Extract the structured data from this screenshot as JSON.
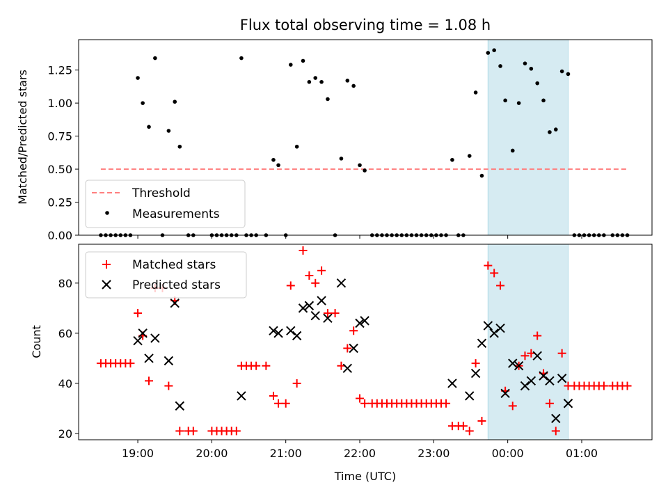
{
  "title": "Flux total observing time = 1.08 h",
  "chart_data": [
    {
      "type": "scatter",
      "ylabel": "Matched/Predicted stars",
      "xlim": [
        18.2,
        1.95
      ],
      "ylim": [
        0,
        1.48
      ],
      "yticks": [
        0.0,
        0.25,
        0.5,
        0.75,
        1.0,
        1.25
      ],
      "ytick_labels": [
        "0.00",
        "0.25",
        "0.50",
        "0.75",
        "1.00",
        "1.25"
      ],
      "shaded_span": {
        "from": "23:44",
        "to": "00:49",
        "color": "#add8e6"
      },
      "threshold": {
        "name": "Threshold",
        "y": 0.5,
        "x_from": "18:30",
        "x_to": "01:37",
        "color": "#ff7f7f"
      },
      "legend": {
        "placement": "lower-left",
        "entries": [
          "Threshold",
          "Measurements"
        ]
      },
      "series": [
        {
          "name": "Measurements",
          "color": "#000000",
          "points": [
            [
              "18:30",
              0
            ],
            [
              "18:34",
              0
            ],
            [
              "18:38",
              0
            ],
            [
              "18:42",
              0
            ],
            [
              "18:46",
              0
            ],
            [
              "18:50",
              0
            ],
            [
              "18:54",
              0
            ],
            [
              "19:00",
              1.19
            ],
            [
              "19:04",
              1.0
            ],
            [
              "19:09",
              0.82
            ],
            [
              "19:14",
              1.34
            ],
            [
              "19:20",
              0
            ],
            [
              "19:25",
              0.79
            ],
            [
              "19:30",
              1.01
            ],
            [
              "19:34",
              0.67
            ],
            [
              "19:41",
              0
            ],
            [
              "19:45",
              0
            ],
            [
              "20:00",
              0
            ],
            [
              "20:04",
              0
            ],
            [
              "20:08",
              0
            ],
            [
              "20:12",
              0
            ],
            [
              "20:16",
              0
            ],
            [
              "20:20",
              0
            ],
            [
              "20:24",
              1.34
            ],
            [
              "20:28",
              0
            ],
            [
              "20:32",
              0
            ],
            [
              "20:36",
              0
            ],
            [
              "20:44",
              0
            ],
            [
              "20:50",
              0.57
            ],
            [
              "20:54",
              0.53
            ],
            [
              "21:00",
              0
            ],
            [
              "21:04",
              1.29
            ],
            [
              "21:09",
              0.67
            ],
            [
              "21:14",
              1.32
            ],
            [
              "21:19",
              1.16
            ],
            [
              "21:24",
              1.19
            ],
            [
              "21:29",
              1.16
            ],
            [
              "21:34",
              1.03
            ],
            [
              "21:40",
              0
            ],
            [
              "21:45",
              0.58
            ],
            [
              "21:50",
              1.17
            ],
            [
              "21:55",
              1.13
            ],
            [
              "22:00",
              0.53
            ],
            [
              "22:04",
              0.49
            ],
            [
              "22:10",
              0
            ],
            [
              "22:14",
              0
            ],
            [
              "22:18",
              0
            ],
            [
              "22:22",
              0
            ],
            [
              "22:26",
              0
            ],
            [
              "22:30",
              0
            ],
            [
              "22:34",
              0
            ],
            [
              "22:38",
              0
            ],
            [
              "22:42",
              0
            ],
            [
              "22:46",
              0
            ],
            [
              "22:50",
              0
            ],
            [
              "22:54",
              0
            ],
            [
              "22:58",
              0
            ],
            [
              "23:02",
              0
            ],
            [
              "23:06",
              0
            ],
            [
              "23:10",
              0
            ],
            [
              "23:15",
              0.57
            ],
            [
              "23:20",
              0
            ],
            [
              "23:24",
              0
            ],
            [
              "23:29",
              0.6
            ],
            [
              "23:34",
              1.08
            ],
            [
              "23:39",
              0.45
            ],
            [
              "23:44",
              1.38
            ],
            [
              "23:49",
              1.4
            ],
            [
              "23:54",
              1.28
            ],
            [
              "23:58",
              1.02
            ],
            [
              "00:04",
              0.64
            ],
            [
              "00:09",
              1.0
            ],
            [
              "00:14",
              1.3
            ],
            [
              "00:19",
              1.26
            ],
            [
              "00:24",
              1.15
            ],
            [
              "00:29",
              1.02
            ],
            [
              "00:34",
              0.78
            ],
            [
              "00:39",
              0.8
            ],
            [
              "00:44",
              1.24
            ],
            [
              "00:49",
              1.22
            ],
            [
              "00:54",
              0
            ],
            [
              "00:58",
              0
            ],
            [
              "01:02",
              0
            ],
            [
              "01:06",
              0
            ],
            [
              "01:10",
              0
            ],
            [
              "01:14",
              0
            ],
            [
              "01:18",
              0
            ],
            [
              "01:25",
              0
            ],
            [
              "01:29",
              0
            ],
            [
              "01:33",
              0
            ],
            [
              "01:37",
              0
            ]
          ]
        }
      ]
    },
    {
      "type": "scatter",
      "ylabel": "Count",
      "xlabel": "Time (UTC)",
      "xlim": [
        18.2,
        1.95
      ],
      "ylim": [
        17.5,
        95.5
      ],
      "yticks": [
        20,
        40,
        60,
        80
      ],
      "ytick_labels": [
        "20",
        "40",
        "60",
        "80"
      ],
      "xticks": [
        "19:00",
        "20:00",
        "21:00",
        "22:00",
        "23:00",
        "00:00",
        "01:00"
      ],
      "shaded_span": {
        "from": "23:44",
        "to": "00:49",
        "color": "#add8e6"
      },
      "legend": {
        "placement": "upper-left",
        "entries": [
          "Matched stars",
          "Predicted stars"
        ]
      },
      "series": [
        {
          "name": "Matched stars",
          "marker": "+",
          "color": "#ff0000",
          "points": [
            [
              "18:30",
              48
            ],
            [
              "18:34",
              48
            ],
            [
              "18:38",
              48
            ],
            [
              "18:42",
              48
            ],
            [
              "18:46",
              48
            ],
            [
              "18:50",
              48
            ],
            [
              "18:54",
              48
            ],
            [
              "19:00",
              68
            ],
            [
              "19:04",
              59
            ],
            [
              "19:09",
              41
            ],
            [
              "19:14",
              78
            ],
            [
              "19:20",
              78
            ],
            [
              "19:25",
              39
            ],
            [
              "19:30",
              73
            ],
            [
              "19:34",
              21
            ],
            [
              "19:41",
              21
            ],
            [
              "19:45",
              21
            ],
            [
              "20:00",
              21
            ],
            [
              "20:04",
              21
            ],
            [
              "20:08",
              21
            ],
            [
              "20:12",
              21
            ],
            [
              "20:16",
              21
            ],
            [
              "20:20",
              21
            ],
            [
              "20:24",
              47
            ],
            [
              "20:28",
              47
            ],
            [
              "20:32",
              47
            ],
            [
              "20:36",
              47
            ],
            [
              "20:44",
              47
            ],
            [
              "20:50",
              35
            ],
            [
              "20:54",
              32
            ],
            [
              "21:00",
              32
            ],
            [
              "21:04",
              79
            ],
            [
              "21:09",
              40
            ],
            [
              "21:14",
              93
            ],
            [
              "21:19",
              83
            ],
            [
              "21:24",
              80
            ],
            [
              "21:29",
              85
            ],
            [
              "21:34",
              68
            ],
            [
              "21:40",
              68
            ],
            [
              "21:45",
              47
            ],
            [
              "21:50",
              54
            ],
            [
              "21:55",
              61
            ],
            [
              "22:00",
              34
            ],
            [
              "22:04",
              32
            ],
            [
              "22:10",
              32
            ],
            [
              "22:14",
              32
            ],
            [
              "22:18",
              32
            ],
            [
              "22:22",
              32
            ],
            [
              "22:26",
              32
            ],
            [
              "22:30",
              32
            ],
            [
              "22:34",
              32
            ],
            [
              "22:38",
              32
            ],
            [
              "22:42",
              32
            ],
            [
              "22:46",
              32
            ],
            [
              "22:50",
              32
            ],
            [
              "22:54",
              32
            ],
            [
              "22:58",
              32
            ],
            [
              "23:02",
              32
            ],
            [
              "23:06",
              32
            ],
            [
              "23:10",
              32
            ],
            [
              "23:15",
              23
            ],
            [
              "23:20",
              23
            ],
            [
              "23:24",
              23
            ],
            [
              "23:29",
              21
            ],
            [
              "23:34",
              48
            ],
            [
              "23:39",
              25
            ],
            [
              "23:44",
              87
            ],
            [
              "23:49",
              84
            ],
            [
              "23:54",
              79
            ],
            [
              "23:58",
              37
            ],
            [
              "00:04",
              31
            ],
            [
              "00:09",
              47
            ],
            [
              "00:14",
              51
            ],
            [
              "00:19",
              52
            ],
            [
              "00:24",
              59
            ],
            [
              "00:29",
              44
            ],
            [
              "00:34",
              32
            ],
            [
              "00:39",
              21
            ],
            [
              "00:44",
              52
            ],
            [
              "00:49",
              39
            ],
            [
              "00:54",
              39
            ],
            [
              "00:58",
              39
            ],
            [
              "01:02",
              39
            ],
            [
              "01:06",
              39
            ],
            [
              "01:10",
              39
            ],
            [
              "01:14",
              39
            ],
            [
              "01:18",
              39
            ],
            [
              "01:25",
              39
            ],
            [
              "01:29",
              39
            ],
            [
              "01:33",
              39
            ],
            [
              "01:37",
              39
            ]
          ]
        },
        {
          "name": "Predicted stars",
          "marker": "x",
          "color": "#000000",
          "points": [
            [
              "19:00",
              57
            ],
            [
              "19:04",
              60
            ],
            [
              "19:09",
              50
            ],
            [
              "19:14",
              58
            ],
            [
              "19:25",
              49
            ],
            [
              "19:30",
              72
            ],
            [
              "19:34",
              31
            ],
            [
              "20:24",
              35
            ],
            [
              "20:50",
              61
            ],
            [
              "20:54",
              60
            ],
            [
              "21:04",
              61
            ],
            [
              "21:09",
              59
            ],
            [
              "21:14",
              70
            ],
            [
              "21:19",
              71
            ],
            [
              "21:24",
              67
            ],
            [
              "21:29",
              73
            ],
            [
              "21:34",
              66
            ],
            [
              "21:45",
              80
            ],
            [
              "21:50",
              46
            ],
            [
              "21:55",
              54
            ],
            [
              "22:00",
              64
            ],
            [
              "22:04",
              65
            ],
            [
              "23:15",
              40
            ],
            [
              "23:29",
              35
            ],
            [
              "23:34",
              44
            ],
            [
              "23:39",
              56
            ],
            [
              "23:44",
              63
            ],
            [
              "23:49",
              60
            ],
            [
              "23:54",
              62
            ],
            [
              "23:58",
              36
            ],
            [
              "00:04",
              48
            ],
            [
              "00:09",
              47
            ],
            [
              "00:14",
              39
            ],
            [
              "00:19",
              41
            ],
            [
              "00:24",
              51
            ],
            [
              "00:29",
              43
            ],
            [
              "00:34",
              41
            ],
            [
              "00:39",
              26
            ],
            [
              "00:44",
              42
            ],
            [
              "00:49",
              32
            ]
          ]
        }
      ]
    }
  ]
}
